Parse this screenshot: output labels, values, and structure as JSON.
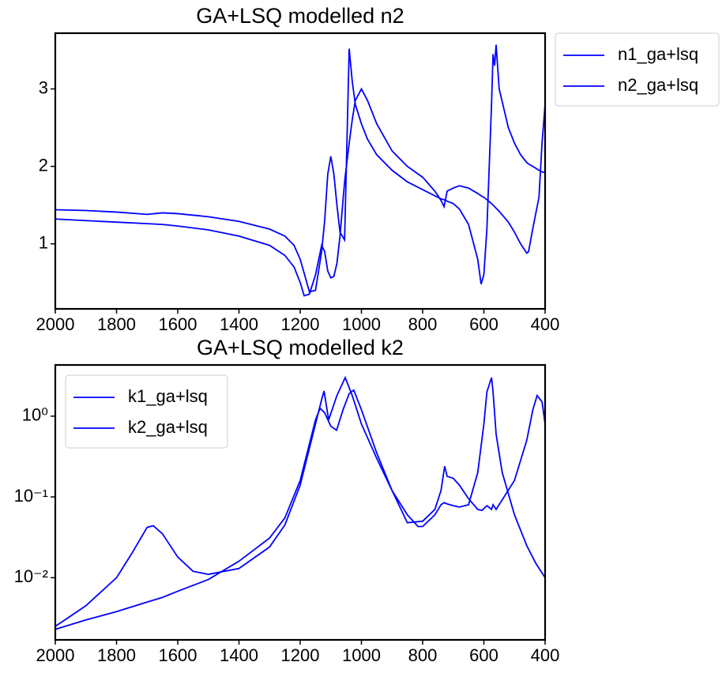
{
  "chart_data": [
    {
      "type": "line",
      "title": "GA+LSQ modelled n2",
      "x": [
        2000,
        1900,
        1800,
        1700,
        1650,
        1600,
        1500,
        1400,
        1300,
        1250,
        1220,
        1200,
        1187,
        1170,
        1150,
        1130,
        1120,
        1110,
        1100,
        1090,
        1080,
        1070,
        1055,
        1040,
        1030,
        1020,
        1000,
        980,
        950,
        900,
        850,
        800,
        760,
        740,
        730,
        720,
        700,
        680,
        650,
        620,
        609,
        600,
        590,
        575,
        570,
        565,
        560,
        550,
        520,
        500,
        480,
        460,
        454,
        440,
        420,
        410,
        400
      ],
      "series": [
        {
          "name": "n1_ga+lsq",
          "color": "#0000ff",
          "values": [
            1.44,
            1.43,
            1.41,
            1.38,
            1.4,
            1.39,
            1.35,
            1.29,
            1.19,
            1.1,
            0.98,
            0.8,
            0.62,
            0.38,
            0.4,
            0.9,
            1.3,
            1.9,
            2.13,
            1.9,
            1.5,
            1.15,
            1.05,
            3.52,
            3.1,
            2.8,
            2.55,
            2.35,
            2.15,
            1.95,
            1.8,
            1.7,
            1.62,
            1.58,
            1.57,
            1.55,
            1.52,
            1.45,
            1.25,
            0.8,
            0.48,
            0.6,
            1.2,
            2.8,
            3.45,
            3.3,
            3.57,
            3.0,
            2.5,
            2.3,
            2.15,
            2.05,
            2.03,
            2.0,
            1.95,
            1.93,
            1.92
          ]
        },
        {
          "name": "n2_ga+lsq",
          "color": "#0000ff",
          "values": [
            1.32,
            1.3,
            1.28,
            1.26,
            1.25,
            1.23,
            1.18,
            1.1,
            0.98,
            0.85,
            0.7,
            0.5,
            0.33,
            0.35,
            0.6,
            0.98,
            0.9,
            0.65,
            0.56,
            0.58,
            0.75,
            1.1,
            1.8,
            2.3,
            2.6,
            2.85,
            3.0,
            2.85,
            2.55,
            2.2,
            2.0,
            1.86,
            1.68,
            1.56,
            1.48,
            1.68,
            1.72,
            1.75,
            1.72,
            1.65,
            1.62,
            1.6,
            1.57,
            1.52,
            1.5,
            1.48,
            1.46,
            1.42,
            1.28,
            1.15,
            1.0,
            0.88,
            0.9,
            1.2,
            1.6,
            2.3,
            2.8
          ]
        }
      ],
      "xlim": [
        2000,
        400
      ],
      "xticks": [
        2000,
        1800,
        1600,
        1400,
        1200,
        1000,
        800,
        600,
        400
      ],
      "ylim": [
        0.16,
        3.72
      ],
      "yticks": [
        1,
        2,
        3
      ],
      "legend": "outside upper right"
    },
    {
      "type": "line",
      "title": "GA+LSQ modelled k2",
      "yscale": "log",
      "series": [
        {
          "name": "k1_ga+lsq",
          "color": "#0000ff",
          "x": [
            2000,
            1900,
            1800,
            1750,
            1700,
            1680,
            1650,
            1600,
            1550,
            1500,
            1400,
            1300,
            1250,
            1200,
            1150,
            1130,
            1122,
            1107,
            1080,
            1053,
            1030,
            1000,
            950,
            900,
            850,
            815,
            800,
            760,
            740,
            730,
            720,
            700,
            680,
            650,
            620,
            600,
            590,
            575,
            570,
            560,
            540,
            500,
            460,
            430,
            400
          ],
          "values": [
            0.0025,
            0.0045,
            0.01,
            0.02,
            0.042,
            0.044,
            0.035,
            0.018,
            0.012,
            0.011,
            0.013,
            0.024,
            0.045,
            0.14,
            0.8,
            1.6,
            2.05,
            0.9,
            1.8,
            3.0,
            1.8,
            0.8,
            0.3,
            0.12,
            0.06,
            0.043,
            0.043,
            0.06,
            0.08,
            0.085,
            0.082,
            0.078,
            0.075,
            0.08,
            0.2,
            0.8,
            2.0,
            3.0,
            2.0,
            0.6,
            0.2,
            0.06,
            0.025,
            0.015,
            0.01
          ]
        },
        {
          "name": "k2_ga+lsq",
          "color": "#0000ff",
          "x": [
            2000,
            1900,
            1800,
            1700,
            1650,
            1600,
            1500,
            1400,
            1300,
            1250,
            1200,
            1150,
            1135,
            1120,
            1100,
            1081,
            1060,
            1040,
            1025,
            1000,
            950,
            900,
            850,
            800,
            760,
            740,
            728,
            720,
            700,
            680,
            650,
            620,
            606,
            590,
            575,
            570,
            560,
            500,
            460,
            440,
            426,
            410,
            400
          ],
          "values": [
            0.0023,
            0.003,
            0.0038,
            0.005,
            0.0057,
            0.0068,
            0.0095,
            0.016,
            0.031,
            0.055,
            0.16,
            0.9,
            1.25,
            1.1,
            0.75,
            0.67,
            1.2,
            1.9,
            2.1,
            1.2,
            0.35,
            0.12,
            0.048,
            0.05,
            0.07,
            0.12,
            0.24,
            0.18,
            0.17,
            0.14,
            0.095,
            0.07,
            0.068,
            0.078,
            0.07,
            0.08,
            0.07,
            0.16,
            0.5,
            1.2,
            1.8,
            1.5,
            0.8
          ]
        }
      ],
      "xlim": [
        2000,
        400
      ],
      "xticks": [
        2000,
        1800,
        1600,
        1400,
        1200,
        1000,
        800,
        600,
        400
      ],
      "ylim": [
        0.0017,
        4.3
      ],
      "yticks": [
        {
          "value": 0.01,
          "label": "10⁻²"
        },
        {
          "value": 0.1,
          "label": "10⁻¹"
        },
        {
          "value": 1,
          "label": "10⁰"
        }
      ],
      "legend": "upper left"
    }
  ]
}
